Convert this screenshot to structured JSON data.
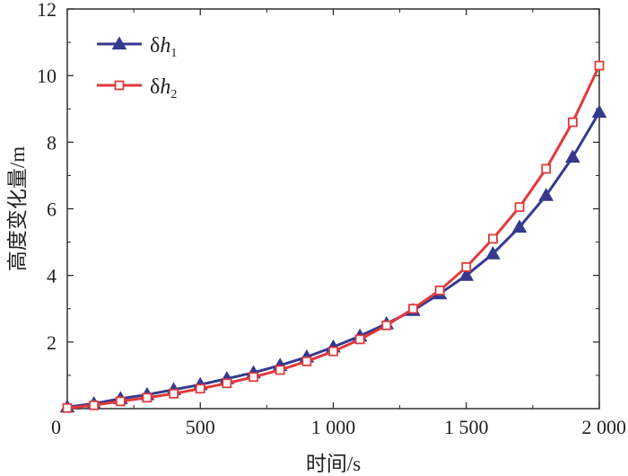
{
  "chart_data": {
    "type": "line",
    "xlabel": "时间/s",
    "ylabel": "高度变化量/m",
    "xlim": [
      0,
      2000
    ],
    "ylim": [
      0,
      12
    ],
    "x_ticks": [
      0,
      500,
      1000,
      1500,
      2000
    ],
    "x_tick_labels": [
      "0",
      "500",
      "1 000",
      "1 500",
      "2 000"
    ],
    "y_ticks": [
      2,
      4,
      6,
      8,
      10,
      12
    ],
    "y_tick_labels": [
      "2",
      "4",
      "6",
      "8",
      "10",
      "12"
    ],
    "grid": false,
    "legend_position": "top-left",
    "series": [
      {
        "name": "δh1",
        "label_base": "δ",
        "label_var": "h",
        "label_sub": "1",
        "color": "#353a8e",
        "marker": "triangle",
        "x": [
          0,
          100,
          200,
          300,
          400,
          500,
          600,
          700,
          800,
          900,
          1000,
          1100,
          1200,
          1300,
          1400,
          1500,
          1600,
          1700,
          1800,
          1900,
          2000
        ],
        "y": [
          0.05,
          0.15,
          0.3,
          0.42,
          0.57,
          0.72,
          0.9,
          1.08,
          1.3,
          1.55,
          1.85,
          2.18,
          2.55,
          2.95,
          3.45,
          4.0,
          4.65,
          5.45,
          6.4,
          7.55,
          8.9
        ]
      },
      {
        "name": "δh2",
        "label_base": "δ",
        "label_var": "h",
        "label_sub": "2",
        "color": "#e03a3c",
        "marker": "square",
        "x": [
          0,
          100,
          200,
          300,
          400,
          500,
          600,
          700,
          800,
          900,
          1000,
          1100,
          1200,
          1300,
          1400,
          1500,
          1600,
          1700,
          1800,
          1900,
          2000
        ],
        "y": [
          0.02,
          0.1,
          0.22,
          0.33,
          0.45,
          0.6,
          0.76,
          0.95,
          1.16,
          1.42,
          1.72,
          2.08,
          2.5,
          3.0,
          3.55,
          4.25,
          5.1,
          6.05,
          7.2,
          8.6,
          10.3
        ]
      }
    ]
  }
}
